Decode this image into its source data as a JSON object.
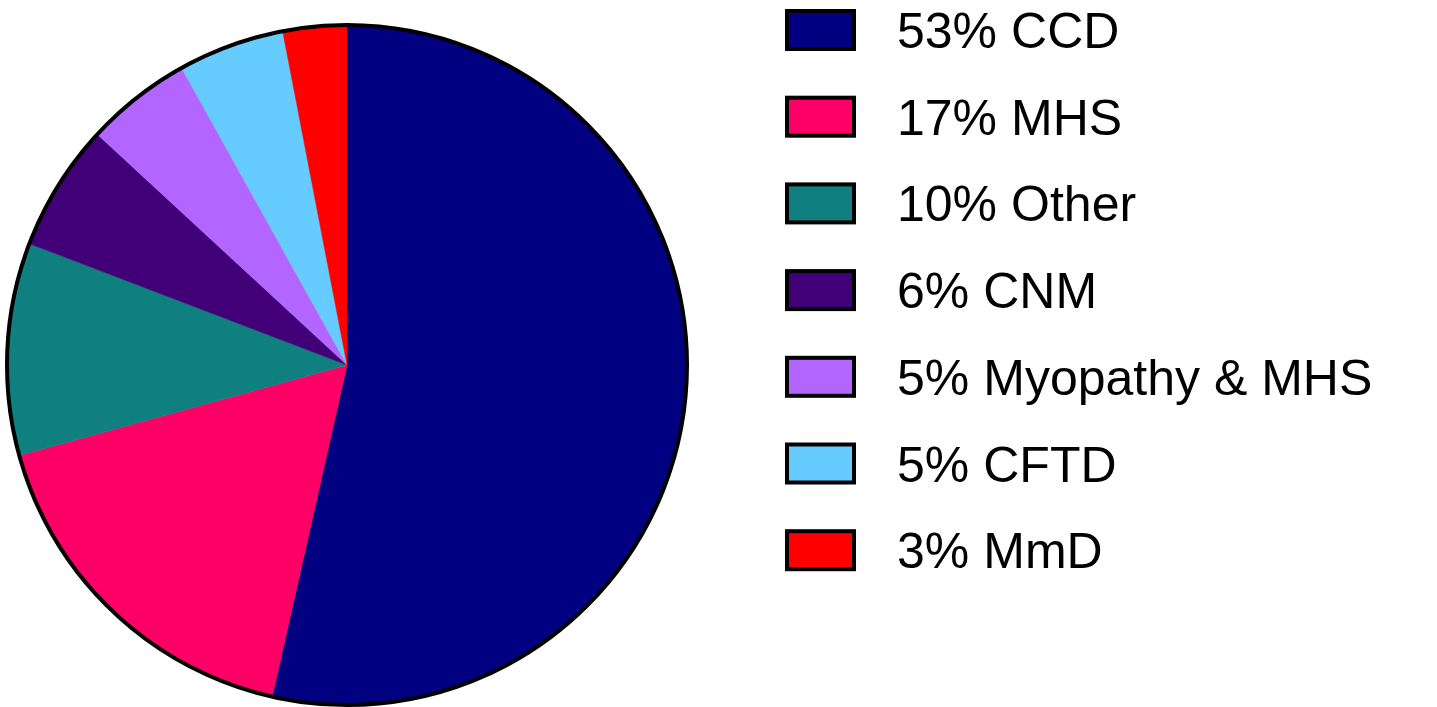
{
  "chart_data": {
    "type": "pie",
    "categories": [
      "CCD",
      "MHS",
      "Other",
      "CNM",
      "Myopathy & MHS",
      "CFTD",
      "MmD"
    ],
    "values": [
      53,
      17,
      10,
      6,
      5,
      5,
      3
    ],
    "value_labels": [
      "53%",
      "17%",
      "10%",
      "6%",
      "5%",
      "5%",
      "3%"
    ],
    "colors": [
      "#000080",
      "#ff0066",
      "#0f7f7f",
      "#420078",
      "#b266ff",
      "#66ccff",
      "#ff0000"
    ],
    "legend": "right"
  }
}
